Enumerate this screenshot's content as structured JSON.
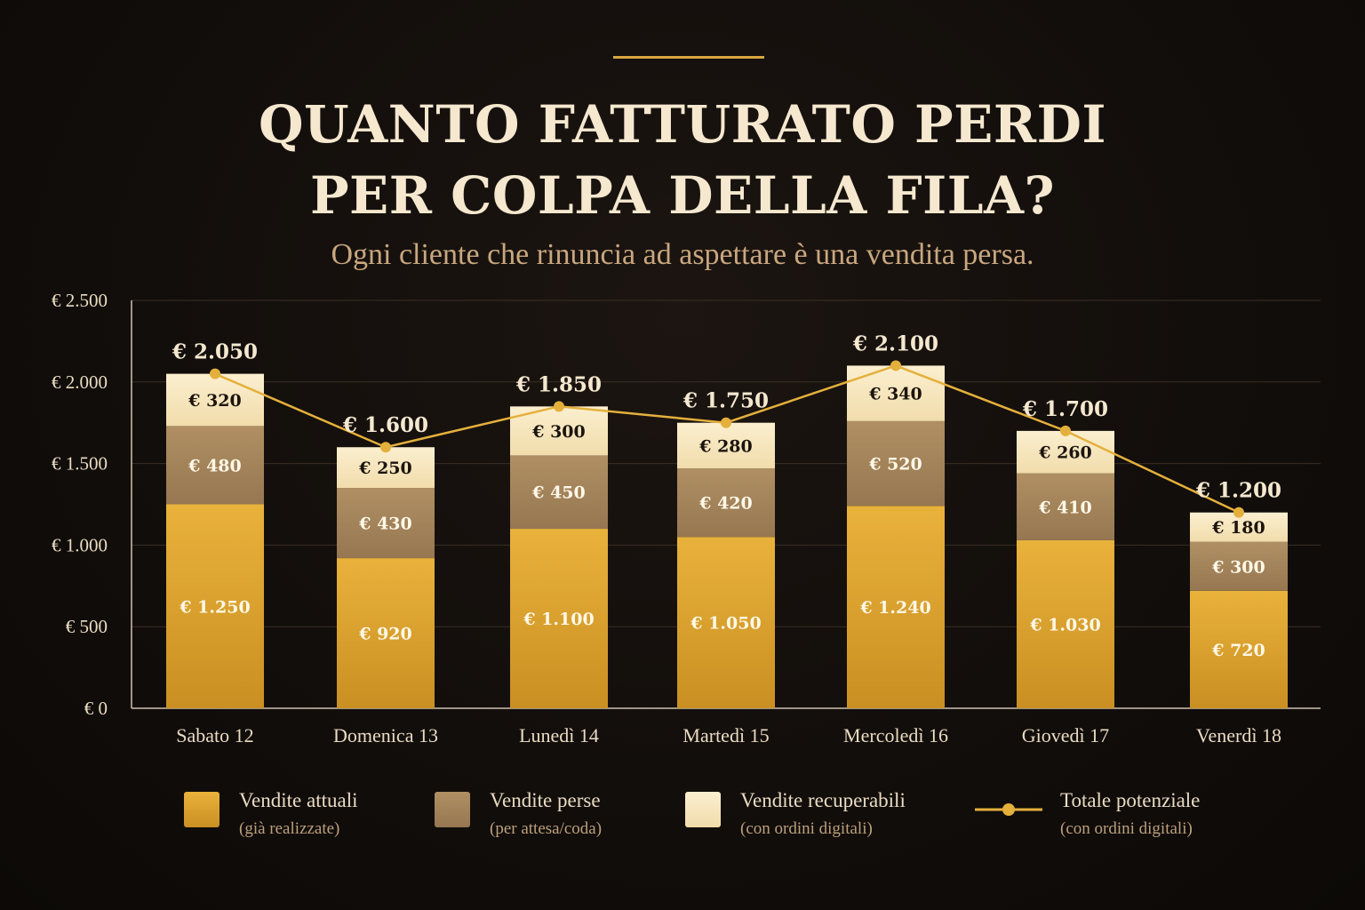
{
  "header": {
    "title_line1": "QUANTO FATTURATO PERDI",
    "title_line2": "PER COLPA DELLA FILA?",
    "subtitle": "Ogni cliente che rinuncia ad aspettare è una vendita persa."
  },
  "colors": {
    "actual": "#e0a32e",
    "lost": "#a58559",
    "recoverable": "#f7e5bd",
    "line": "#e4b03c",
    "background": "#110d0a",
    "text": "#f5e8cf"
  },
  "legend": [
    {
      "label": "Vendite attuali",
      "sub": "(già realizzate)",
      "type": "swatch",
      "color_key": "actual"
    },
    {
      "label": "Vendite perse",
      "sub": "(per attesa/coda)",
      "type": "swatch",
      "color_key": "lost"
    },
    {
      "label": "Vendite recuperabili",
      "sub": "(con ordini digitali)",
      "type": "swatch",
      "color_key": "recoverable"
    },
    {
      "label": "Totale potenziale",
      "sub": "(con ordini digitali)",
      "type": "line",
      "color_key": "line"
    }
  ],
  "chart_data": {
    "type": "bar",
    "stacked": true,
    "categories": [
      "Sabato 12",
      "Domenica 13",
      "Lunedì 14",
      "Martedì 15",
      "Mercoledì 16",
      "Giovedì 17",
      "Venerdì 18"
    ],
    "series": [
      {
        "name": "Vendite attuali",
        "values": [
          1250,
          920,
          1100,
          1050,
          1240,
          1030,
          720
        ],
        "labels": [
          "€ 1.250",
          "€ 920",
          "€ 1.100",
          "€ 1.050",
          "€ 1.240",
          "€ 1.030",
          "€ 720"
        ]
      },
      {
        "name": "Vendite perse",
        "values": [
          480,
          430,
          450,
          420,
          520,
          410,
          300
        ],
        "labels": [
          "€ 480",
          "€ 430",
          "€ 450",
          "€ 420",
          "€ 520",
          "€ 410",
          "€ 300"
        ]
      },
      {
        "name": "Vendite recuperabili",
        "values": [
          320,
          250,
          300,
          280,
          340,
          260,
          180
        ],
        "labels": [
          "€ 320",
          "€ 250",
          "€ 300",
          "€ 280",
          "€ 340",
          "€ 260",
          "€ 180"
        ]
      }
    ],
    "line_series": {
      "name": "Totale potenziale",
      "values": [
        2050,
        1600,
        1850,
        1750,
        2100,
        1700,
        1200
      ],
      "labels": [
        "€ 2.050",
        "€ 1.600",
        "€ 1.850",
        "€ 1.750",
        "€ 2.100",
        "€ 1.700",
        "€ 1.200"
      ]
    },
    "ylim": [
      0,
      2500
    ],
    "yticks": [
      0,
      500,
      1000,
      1500,
      2000,
      2500
    ],
    "ytick_labels": [
      "€ 0",
      "€ 500",
      "€ 1.000",
      "€ 1.500",
      "€ 2.000",
      "€ 2.500"
    ],
    "grid": true,
    "legend_position": "bottom"
  }
}
